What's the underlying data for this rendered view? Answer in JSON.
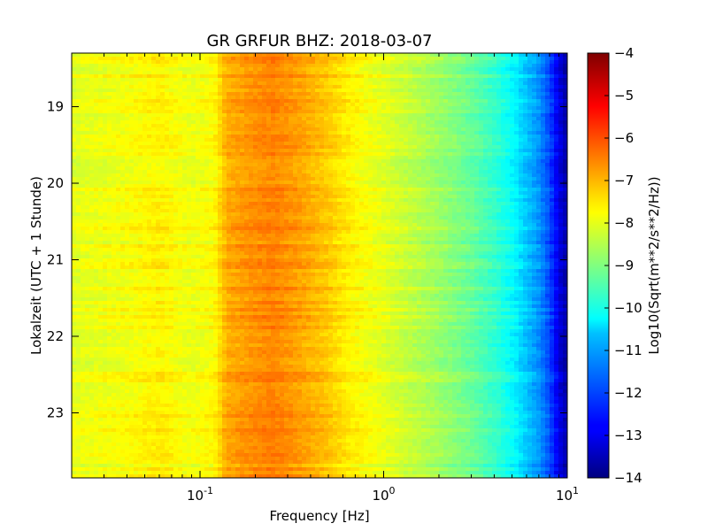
{
  "chart_data": {
    "type": "heatmap",
    "title": "GR GRFUR BHZ: 2018-03-07",
    "xlabel": "Frequency [Hz]",
    "ylabel": "Lokalzeit (UTC + 1 Stunde)",
    "colorbar_label": "Log10(Sqrt(m**2/s**2/Hz))",
    "x_scale": "log",
    "xlim": [
      0.02,
      10
    ],
    "ylim": [
      18.3,
      23.85
    ],
    "y_inverted": true,
    "x_ticks": [
      {
        "value": 0.1,
        "base": "10",
        "exp": "-1"
      },
      {
        "value": 1,
        "base": "10",
        "exp": "0"
      },
      {
        "value": 10,
        "base": "10",
        "exp": "1"
      }
    ],
    "y_ticks": [
      19,
      20,
      21,
      22,
      23
    ],
    "y_tick_labels": [
      "19",
      "20",
      "21",
      "22",
      "23"
    ],
    "color_range": [
      -14,
      -4
    ],
    "colorbar_ticks": [
      -4,
      -5,
      -6,
      -7,
      -8,
      -9,
      -10,
      -11,
      -12,
      -13,
      -14
    ],
    "colorbar_tick_labels": [
      "−4",
      "−5",
      "−6",
      "−7",
      "−8",
      "−9",
      "−10",
      "−11",
      "−12",
      "−13",
      "−14"
    ],
    "colormap": "jet",
    "spectrum_profile": {
      "frequencies": [
        0.02,
        0.04,
        0.06,
        0.09,
        0.12,
        0.14,
        0.18,
        0.25,
        0.35,
        0.5,
        0.65,
        0.8,
        1.0,
        1.5,
        2.0,
        3.0,
        4.0,
        5.0,
        6.0,
        7.0,
        8.0,
        9.0,
        10.0
      ],
      "values": [
        -8.0,
        -7.8,
        -7.6,
        -7.9,
        -7.7,
        -6.9,
        -6.7,
        -6.5,
        -6.8,
        -7.2,
        -7.6,
        -7.8,
        -8.0,
        -8.4,
        -8.7,
        -9.2,
        -9.7,
        -10.2,
        -10.8,
        -11.3,
        -12.0,
        -13.0,
        -13.6
      ]
    }
  }
}
